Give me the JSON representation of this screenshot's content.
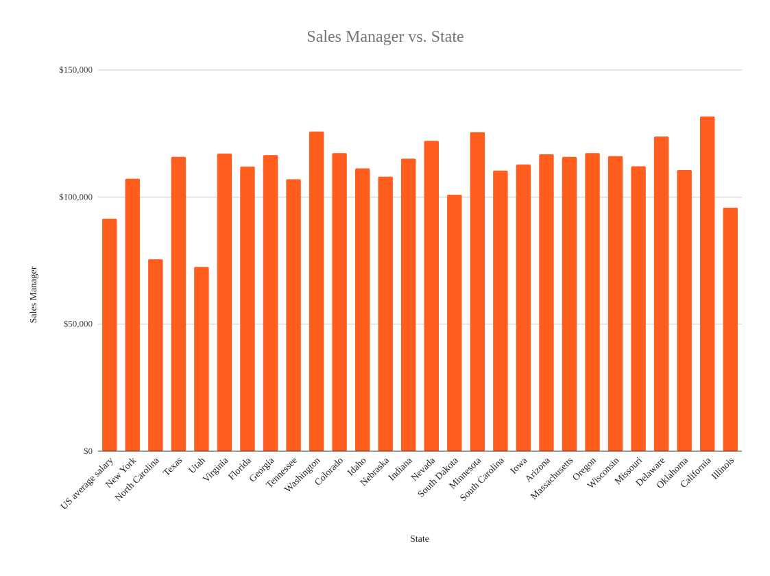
{
  "chart_data": {
    "type": "bar",
    "title": "Sales Manager vs. State",
    "xlabel": "State",
    "ylabel": "Sales Manager",
    "ylim": [
      0,
      150000
    ],
    "yticks": [
      {
        "value": 0,
        "label": "$0"
      },
      {
        "value": 50000,
        "label": "$50,000"
      },
      {
        "value": 100000,
        "label": "$100,000"
      },
      {
        "value": 150000,
        "label": "$150,000"
      }
    ],
    "grid": true,
    "legend": "none",
    "bar_color": "#ff5e1f",
    "categories": [
      "US average salary",
      "New York",
      "North Carolina",
      "Texas",
      "Utah",
      "Virginia",
      "Florida",
      "Georgia",
      "Tennessee",
      "Washington",
      "Colorado",
      "Idaho",
      "Nebraska",
      "Indiana",
      "Nevada",
      "South Dakota",
      "Minnesota",
      "South Carolina",
      "Iowa",
      "Arizona",
      "Massachusetts",
      "Oregon",
      "Wisconsin",
      "Missouri",
      "Delaware",
      "Oklahoma",
      "California",
      "Illinois"
    ],
    "values": [
      91500,
      107200,
      75500,
      115800,
      72500,
      117100,
      112000,
      116500,
      107000,
      125800,
      117300,
      111300,
      108000,
      115100,
      122100,
      100900,
      125500,
      110400,
      112800,
      116800,
      115800,
      117300,
      116100,
      112100,
      123800,
      110600,
      131700,
      95800
    ]
  }
}
